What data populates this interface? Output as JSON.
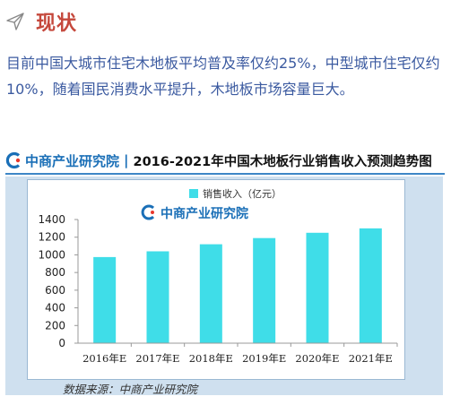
{
  "section": {
    "title": "现状",
    "icon": "send-arrow-icon"
  },
  "intro_text": "目前中国大城市住宅木地板平均普及率仅约25%，中型城市住宅仅约10%，随着国民消费水平提升，木地板市场容量巨大。",
  "banner": {
    "logo_text": "中商产业研究院",
    "title": "2016-2021年中国木地板行业销售收入预测趋势图"
  },
  "watermark_text": "中商产业研究院",
  "source_text": "数据来源：中商产业研究院",
  "chart_data": {
    "type": "bar",
    "categories": [
      "2016年E",
      "2017年E",
      "2018年E",
      "2019年E",
      "2020年E",
      "2021年E"
    ],
    "series": [
      {
        "name": "销售收入（亿元）",
        "values": [
          975,
          1040,
          1120,
          1190,
          1250,
          1300
        ]
      }
    ],
    "yticks": [
      "0",
      "200",
      "400",
      "600",
      "800",
      "1000",
      "1200",
      "1400"
    ],
    "ylim": [
      0,
      1400
    ],
    "legend_position": "top-left",
    "bar_color": "#3fdde8"
  }
}
